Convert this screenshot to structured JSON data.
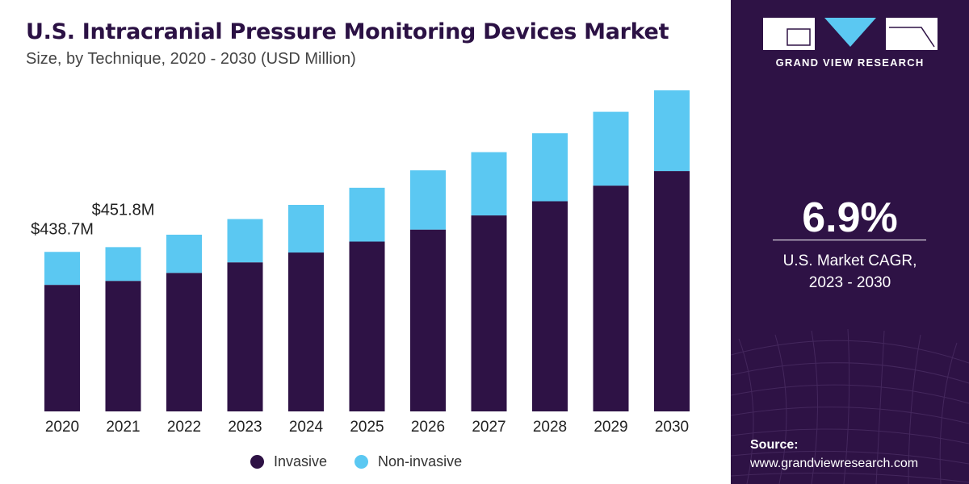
{
  "header": {
    "title": "U.S. Intracranial Pressure Monitoring Devices Market",
    "subtitle": "Size, by Technique, 2020 - 2030 (USD Million)"
  },
  "chart_data": {
    "type": "bar",
    "stacked": true,
    "categories": [
      "2020",
      "2021",
      "2022",
      "2023",
      "2024",
      "2025",
      "2026",
      "2027",
      "2028",
      "2029",
      "2030"
    ],
    "series": [
      {
        "name": "Invasive",
        "color": "#2e1245",
        "values": [
          348,
          359,
          381,
          410,
          437,
          467,
          500,
          539,
          578,
          621,
          661
        ]
      },
      {
        "name": "Non-invasive",
        "color": "#5bc8f2",
        "values": [
          90.7,
          92.8,
          105,
          119,
          131,
          148,
          163,
          174,
          187,
          203,
          222
        ]
      }
    ],
    "annotations": [
      {
        "category": "2020",
        "label": "$438.7M"
      },
      {
        "category": "2021",
        "label": "$451.8M"
      }
    ],
    "ylim": [
      0,
      900
    ],
    "grid": false,
    "legend_position": "bottom-center"
  },
  "sidebar": {
    "brand": "GRAND VIEW RESEARCH",
    "cagr_value": "6.9%",
    "cagr_label_line1": "U.S. Market CAGR,",
    "cagr_label_line2": "2023 - 2030",
    "source_title": "Source:",
    "source_url": "www.grandviewresearch.com",
    "background_color": "#2e1245"
  }
}
